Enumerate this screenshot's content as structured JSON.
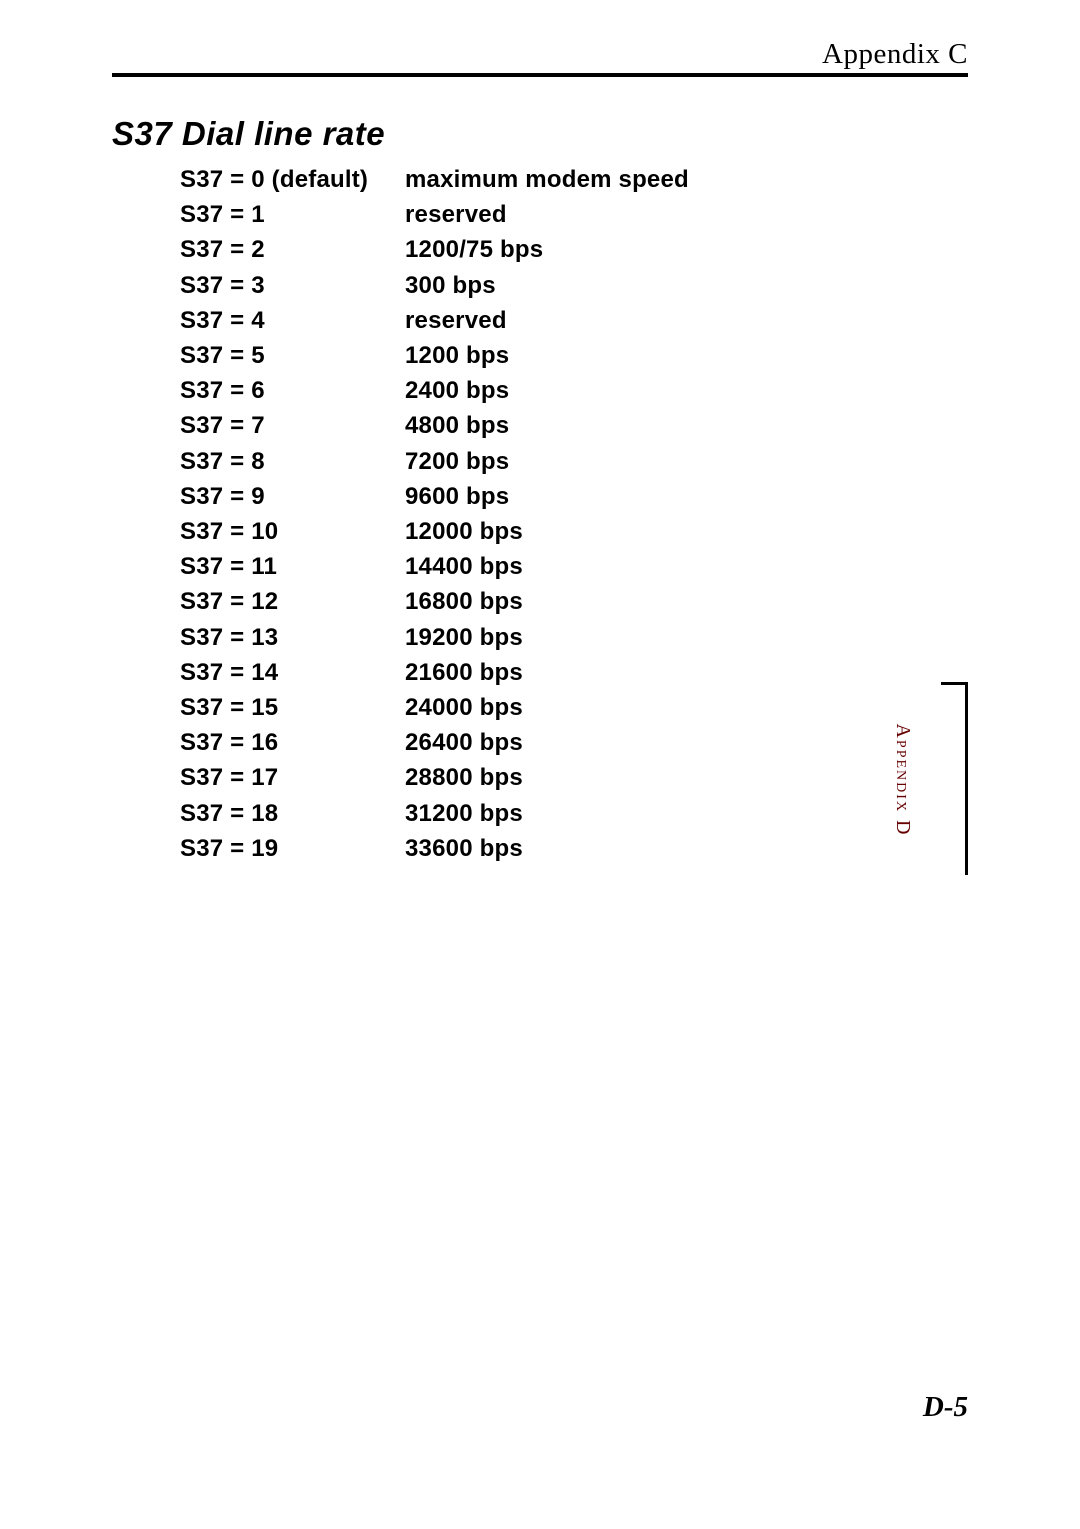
{
  "header": {
    "text": "Appendix C"
  },
  "section": {
    "title": "S37  Dial line rate"
  },
  "table": {
    "rows": [
      {
        "key": "S37 = 0 (default)",
        "val": "maximum modem speed"
      },
      {
        "key": "S37 = 1",
        "val": "reserved"
      },
      {
        "key": "S37 = 2",
        "val": "1200/75 bps"
      },
      {
        "key": "S37 = 3",
        "val": "300 bps"
      },
      {
        "key": "S37 = 4",
        "val": "reserved"
      },
      {
        "key": "S37 = 5",
        "val": "1200 bps"
      },
      {
        "key": "S37 = 6",
        "val": "2400 bps"
      },
      {
        "key": "S37 = 7",
        "val": "4800 bps"
      },
      {
        "key": "S37 = 8",
        "val": "7200 bps"
      },
      {
        "key": "S37 = 9",
        "val": "9600 bps"
      },
      {
        "key": "S37 = 10",
        "val": "12000 bps"
      },
      {
        "key": "S37 = 11",
        "val": "14400 bps"
      },
      {
        "key": "S37 = 12",
        "val": "16800 bps"
      },
      {
        "key": "S37 = 13",
        "val": "19200 bps"
      },
      {
        "key": "S37 = 14",
        "val": "21600 bps"
      },
      {
        "key": "S37 = 15",
        "val": "24000 bps"
      },
      {
        "key": "S37 = 16",
        "val": "26400 bps"
      },
      {
        "key": "S37 = 17",
        "val": "28800 bps"
      },
      {
        "key": "S37 = 18",
        "val": "31200 bps"
      },
      {
        "key": "S37 = 19",
        "val": "33600 bps"
      }
    ]
  },
  "sideTab": {
    "text": "Appendix D",
    "color": "#660000"
  },
  "footer": {
    "pageNumber": "D-5"
  }
}
